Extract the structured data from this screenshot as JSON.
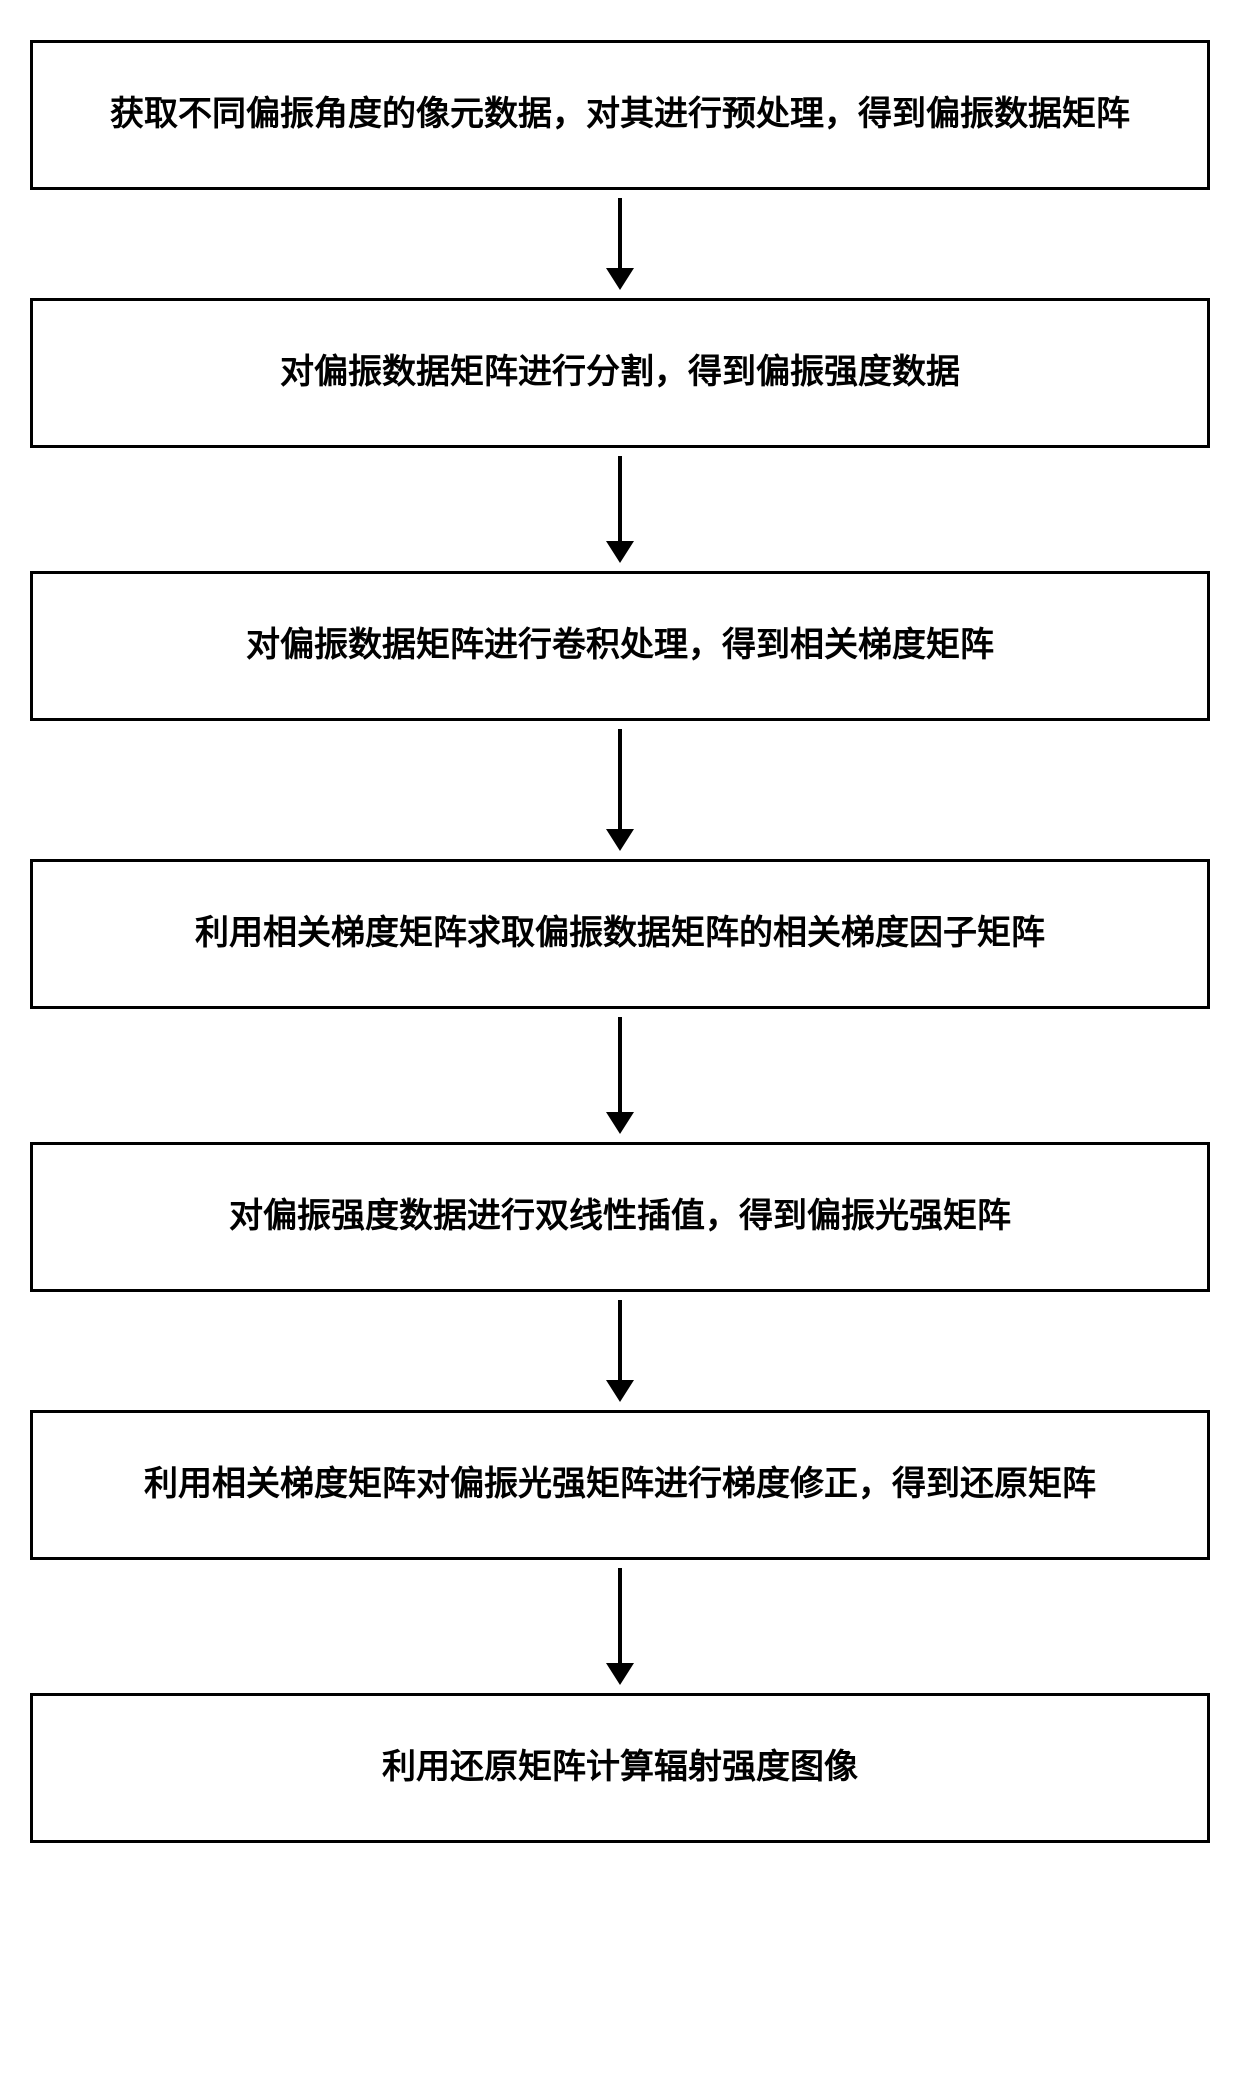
{
  "flowchart": {
    "type": "flowchart",
    "direction": "vertical",
    "background_color": "#ffffff",
    "box_border_color": "#000000",
    "box_border_width": 3,
    "box_background_color": "#ffffff",
    "text_color": "#000000",
    "font_family": "SimSun",
    "font_size": 34,
    "font_weight": "bold",
    "arrow_color": "#000000",
    "arrow_line_width": 4,
    "arrow_head_width": 28,
    "arrow_head_height": 22,
    "steps": [
      {
        "label": "获取不同偏振角度的像元数据，对其进行预处理，得到偏振数据矩阵",
        "arrow_length": 70
      },
      {
        "label": "对偏振数据矩阵进行分割，得到偏振强度数据",
        "arrow_length": 85
      },
      {
        "label": "对偏振数据矩阵进行卷积处理，得到相关梯度矩阵",
        "arrow_length": 100
      },
      {
        "label": "利用相关梯度矩阵求取偏振数据矩阵的相关梯度因子矩阵",
        "arrow_length": 95
      },
      {
        "label": "对偏振强度数据进行双线性插值，得到偏振光强矩阵",
        "arrow_length": 80
      },
      {
        "label": "利用相关梯度矩阵对偏振光强矩阵进行梯度修正，得到还原矩阵",
        "arrow_length": 95
      },
      {
        "label": "利用还原矩阵计算辐射强度图像",
        "arrow_length": 0
      }
    ]
  }
}
